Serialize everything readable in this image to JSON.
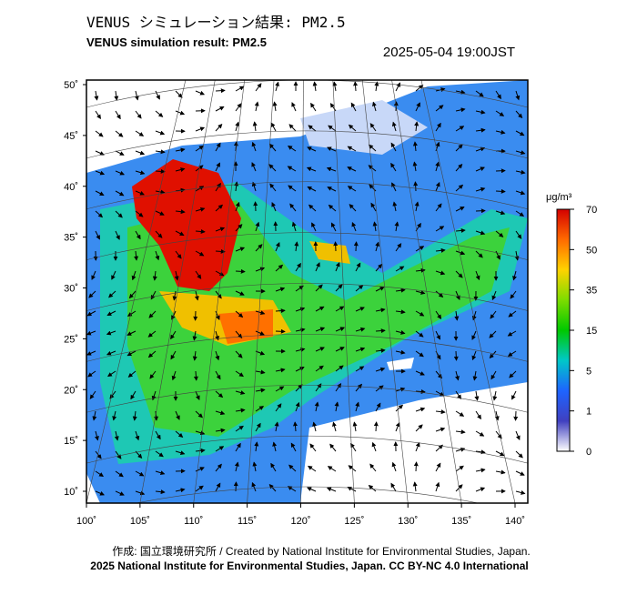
{
  "title": "VENUS シミュレーション結果: PM2.5",
  "subtitle": "VENUS simulation result: PM2.5",
  "timestamp": "2025-05-04 19:00JST",
  "map": {
    "lat_ticks": [
      {
        "value": 50,
        "label": "50˚"
      },
      {
        "value": 45,
        "label": "45˚"
      },
      {
        "value": 40,
        "label": "40˚"
      },
      {
        "value": 35,
        "label": "35˚"
      },
      {
        "value": 30,
        "label": "30˚"
      },
      {
        "value": 25,
        "label": "25˚"
      },
      {
        "value": 20,
        "label": "20˚"
      },
      {
        "value": 15,
        "label": "15˚"
      },
      {
        "value": 10,
        "label": "10˚"
      }
    ],
    "lon_ticks": [
      {
        "value": 100,
        "label": "100˚"
      },
      {
        "value": 105,
        "label": "105˚"
      },
      {
        "value": 110,
        "label": "110˚"
      },
      {
        "value": 115,
        "label": "115˚"
      },
      {
        "value": 120,
        "label": "120˚"
      },
      {
        "value": 125,
        "label": "125˚"
      },
      {
        "value": 130,
        "label": "130˚"
      },
      {
        "value": 135,
        "label": "135˚"
      },
      {
        "value": 140,
        "label": "140˚"
      }
    ]
  },
  "colorbar": {
    "unit": "μg/m³",
    "ticks": [
      70,
      50,
      35,
      15,
      5,
      1,
      0
    ],
    "colors": [
      "#d40000",
      "#ff6a00",
      "#ffd200",
      "#7ddc00",
      "#00c800",
      "#00c8c8",
      "#1e64ff",
      "#4040c0",
      "#ffffff"
    ]
  },
  "credits": [
    "作成: 国立環境研究所 / Created by National Institute for Environmental Studies, Japan.",
    "2025 National Institute for Environmental Studies, Japan. CC BY-NC 4.0 International"
  ]
}
